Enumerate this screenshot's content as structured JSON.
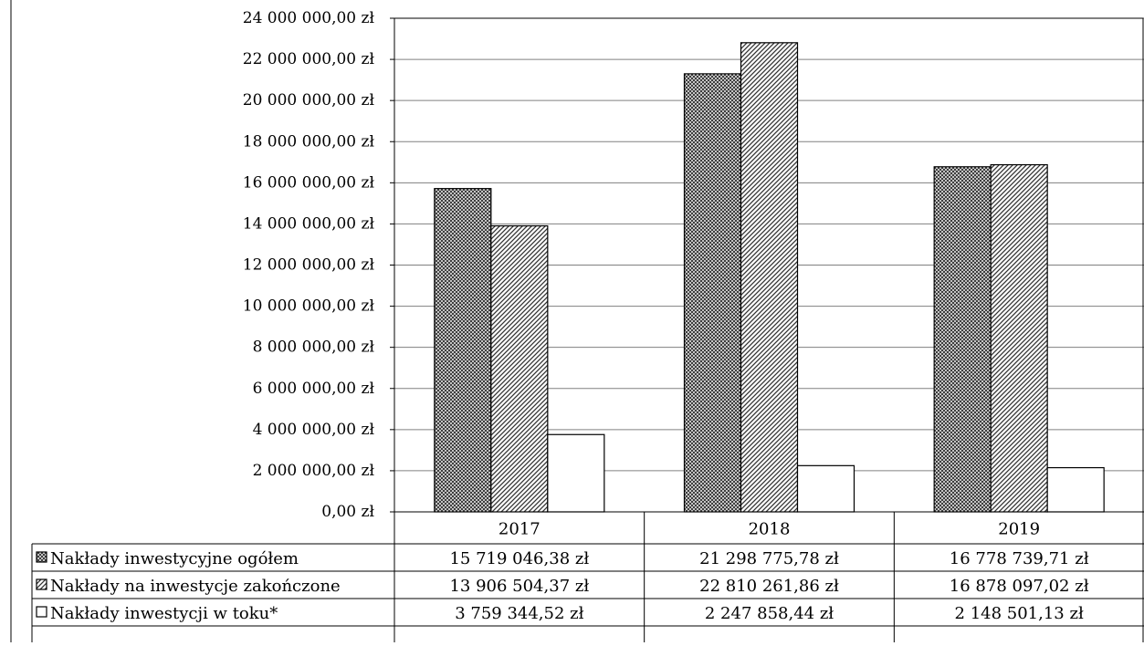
{
  "chart_data": {
    "type": "bar",
    "categories": [
      "2017",
      "2018",
      "2019"
    ],
    "series": [
      {
        "name": "Nakłady inwestycyjne ogółem",
        "values": [
          15719046.38,
          21298775.78,
          16778739.71
        ],
        "labels": [
          "15 719 046,38 zł",
          "21 298 775,78 zł",
          "16 778 739,71 zł"
        ],
        "pattern": "crosshatch"
      },
      {
        "name": "Nakłady na inwestycje zakończone",
        "values": [
          13906504.37,
          22810261.86,
          16878097.02
        ],
        "labels": [
          "13 906 504,37 zł",
          "22 810 261,86 zł",
          "16 878 097,02 zł"
        ],
        "pattern": "diagonal"
      },
      {
        "name": "Nakłady inwestycji w toku*",
        "values": [
          3759344.52,
          2247858.44,
          2148501.13
        ],
        "labels": [
          "3 759 344,52 zł",
          "2 247 858,44 zł",
          "2 148 501,13 zł"
        ],
        "pattern": "none"
      }
    ],
    "ylim": [
      0,
      24000000
    ],
    "yticks": [
      0,
      2000000,
      4000000,
      6000000,
      8000000,
      10000000,
      12000000,
      14000000,
      16000000,
      18000000,
      20000000,
      22000000,
      24000000
    ],
    "ytick_labels": [
      "0,00 zł",
      "2 000 000,00 zł",
      "4 000 000,00 zł",
      "6 000 000,00 zł",
      "8 000 000,00 zł",
      "10 000 000,00 zł",
      "12 000 000,00 zł",
      "14 000 000,00 zł",
      "16 000 000,00 zł",
      "18 000 000,00 zł",
      "20 000 000,00 zł",
      "22 000 000,00 zł",
      "24 000 000,00 zł"
    ],
    "grid": true,
    "legend": "data-table-below",
    "colors": {
      "bar_fill": "#ffffff",
      "pattern_ink": "#333333",
      "axis": "#000000",
      "grid": "#808080"
    }
  }
}
